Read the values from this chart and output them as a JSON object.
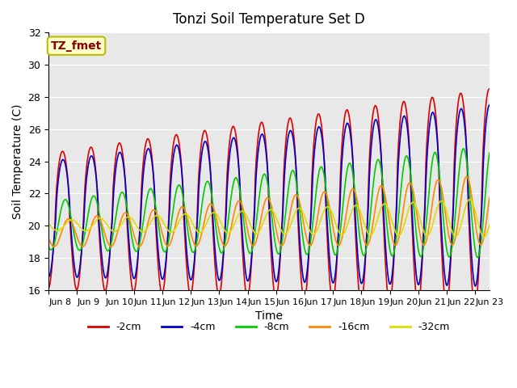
{
  "title": "Tonzi Soil Temperature Set D",
  "xlabel": "Time",
  "ylabel": "Soil Temperature (C)",
  "ylim": [
    16,
    32
  ],
  "annotation_text": "TZ_fmet",
  "annotation_color": "#8B0000",
  "annotation_bg": "#FFFFCC",
  "annotation_border": "#BBBB00",
  "bg_color": "#E8E8E8",
  "legend_entries": [
    "-2cm",
    "-4cm",
    "-8cm",
    "-16cm",
    "-32cm"
  ],
  "line_colors": [
    "#DD0000",
    "#0000CC",
    "#00CC00",
    "#FF8800",
    "#DDDD00"
  ],
  "x_tick_labels": [
    "Jun 8",
    "Jun 9",
    "Jun 10",
    "Jun 11",
    "Jun 12",
    "Jun 13",
    "Jun 14",
    "Jun 15",
    "Jun 16",
    "Jun 17",
    "Jun 18",
    "Jun 19",
    "Jun 20",
    "Jun 21",
    "Jun 22",
    "Jun 23"
  ],
  "days": 15.5,
  "num_points": 500
}
